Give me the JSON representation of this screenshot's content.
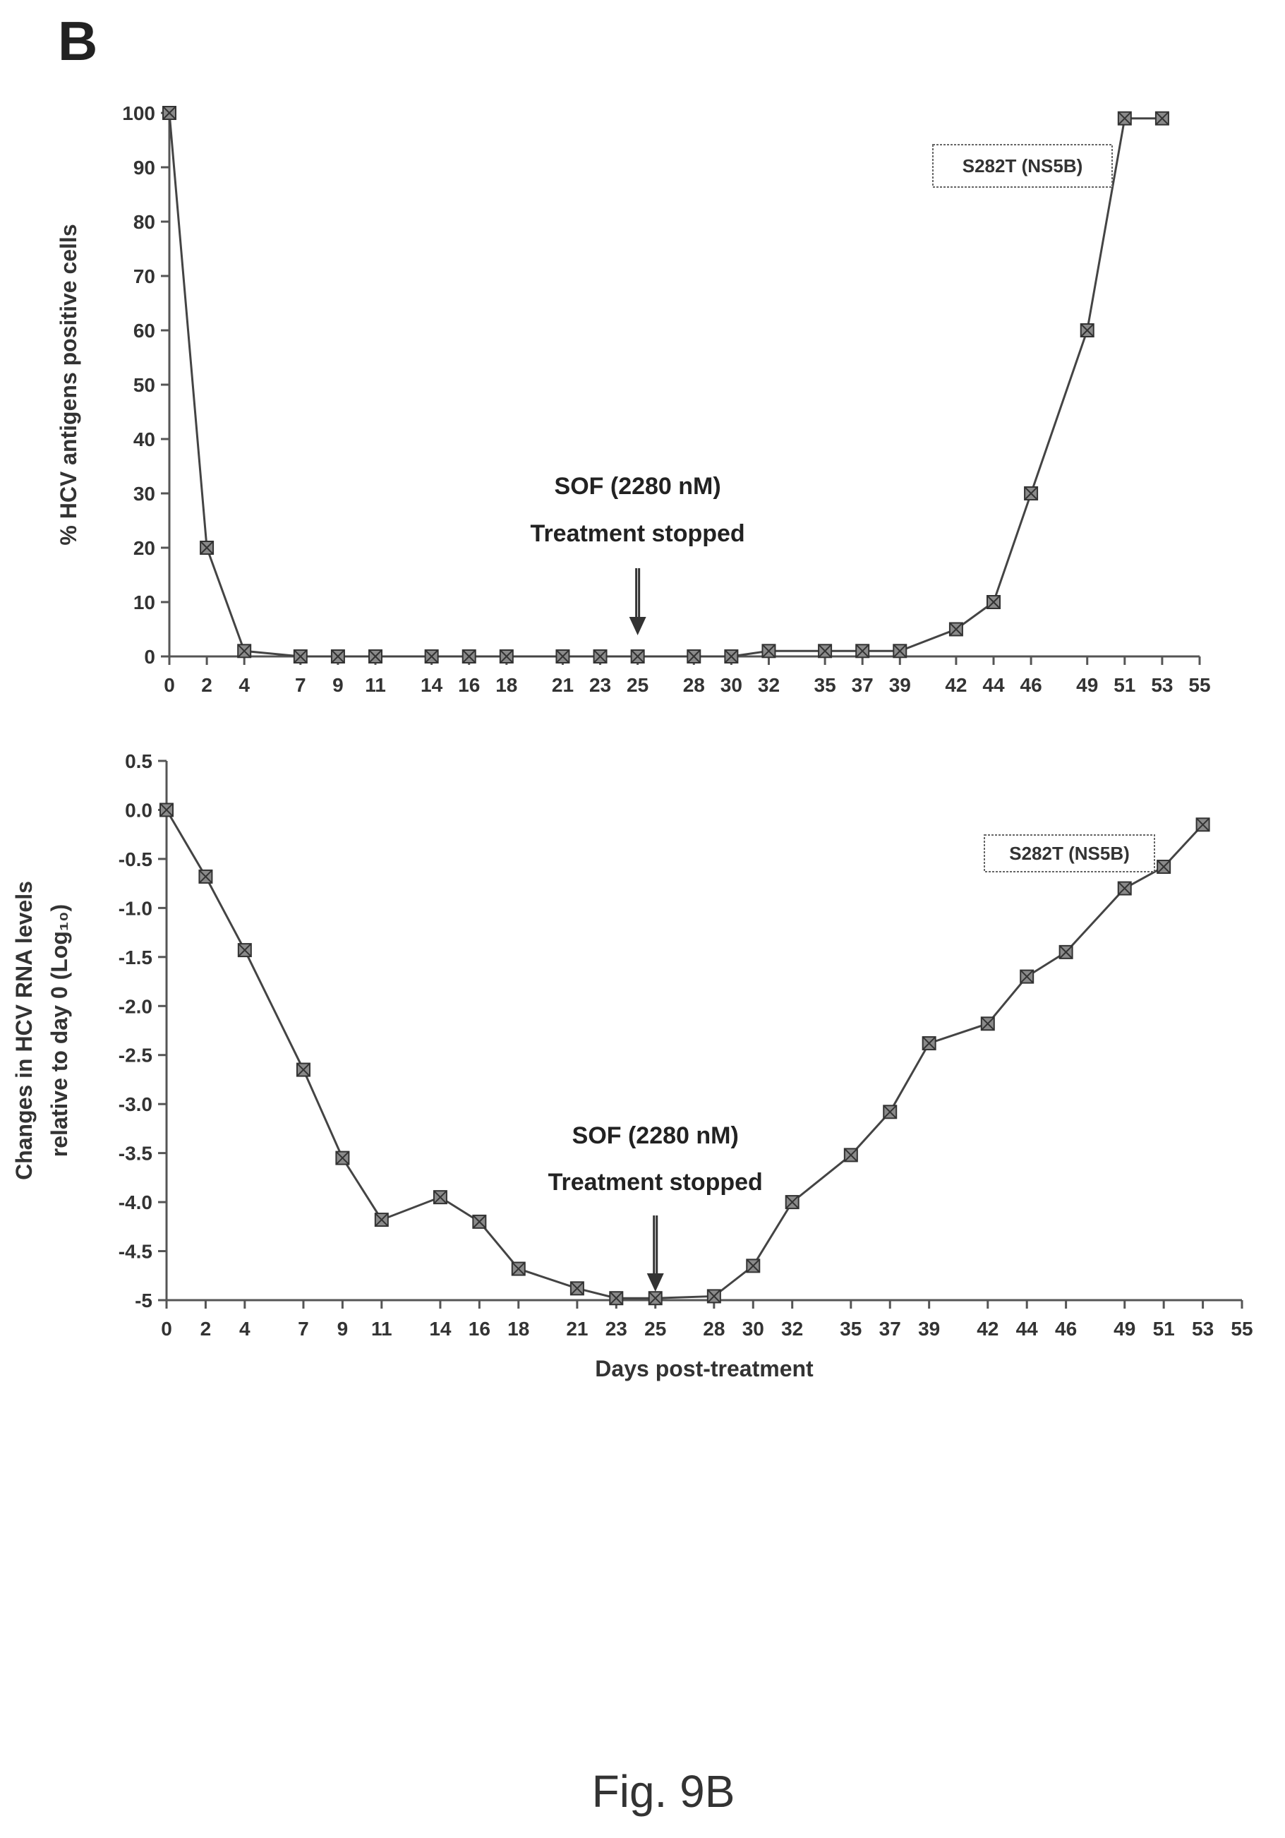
{
  "panel_label": "B",
  "figure_caption": "Fig. 9B",
  "chart_data": [
    {
      "type": "line",
      "title": "",
      "xlabel": "",
      "ylabel": "% HCV antigens positive cells",
      "xlim": [
        0,
        55
      ],
      "ylim": [
        0,
        100
      ],
      "x_ticks": [
        0,
        2,
        4,
        7,
        9,
        11,
        14,
        16,
        18,
        21,
        23,
        25,
        28,
        30,
        32,
        35,
        37,
        39,
        42,
        44,
        46,
        49,
        51,
        53,
        55
      ],
      "y_ticks": [
        0,
        10,
        20,
        30,
        40,
        50,
        60,
        70,
        80,
        90,
        100
      ],
      "series": [
        {
          "x": [
            0,
            2,
            4,
            7,
            9,
            11,
            14,
            16,
            18,
            21,
            23,
            25,
            28,
            30,
            32,
            35,
            37,
            39,
            42,
            44,
            46,
            49,
            51,
            53
          ],
          "y": [
            100,
            20,
            1,
            0,
            0,
            0,
            0,
            0,
            0,
            0,
            0,
            0,
            0,
            0,
            1,
            1,
            1,
            1,
            5,
            10,
            30,
            60,
            99,
            99
          ]
        }
      ],
      "legend_label": "S282T (NS5B)",
      "annotation": {
        "lines": [
          "SOF (2280 nM)",
          "Treatment stopped"
        ],
        "x": 25
      },
      "grid": false
    },
    {
      "type": "line",
      "title": "",
      "xlabel": "Days post-treatment",
      "ylabel_lines": [
        "Changes in HCV RNA levels",
        "relative to day 0 (Log₁₀)"
      ],
      "xlim": [
        0,
        55
      ],
      "ylim": [
        -5,
        0.5
      ],
      "x_ticks": [
        0,
        2,
        4,
        7,
        9,
        11,
        14,
        16,
        18,
        21,
        23,
        25,
        28,
        30,
        32,
        35,
        37,
        39,
        42,
        44,
        46,
        49,
        51,
        53,
        55
      ],
      "y_ticks": [
        0.5,
        0.0,
        -0.5,
        -1.0,
        -1.5,
        -2.0,
        -2.5,
        -3.0,
        -3.5,
        -4.0,
        -4.5,
        -5
      ],
      "y_tick_labels": [
        "0.5",
        "0.0",
        "-0.5",
        "-1.0",
        "-1.5",
        "-2.0",
        "-2.5",
        "-3.0",
        "-3.5",
        "-4.0",
        "-4.5",
        "-5"
      ],
      "series": [
        {
          "x": [
            0,
            2,
            4,
            7,
            9,
            11,
            14,
            16,
            18,
            21,
            23,
            25,
            28,
            30,
            32,
            35,
            37,
            39,
            42,
            44,
            46,
            49,
            51,
            53
          ],
          "y": [
            0.0,
            -0.68,
            -1.43,
            -2.65,
            -3.55,
            -4.18,
            -3.95,
            -4.2,
            -4.68,
            -4.88,
            -4.98,
            -4.98,
            -4.96,
            -4.65,
            -4.0,
            -3.52,
            -3.08,
            -2.38,
            -2.18,
            -1.7,
            -1.45,
            -0.8,
            -0.58,
            -0.15
          ]
        }
      ],
      "legend_label": "S282T (NS5B)",
      "annotation": {
        "lines": [
          "SOF (2280 nM)",
          "Treatment stopped"
        ],
        "x": 25
      },
      "grid": false
    }
  ]
}
